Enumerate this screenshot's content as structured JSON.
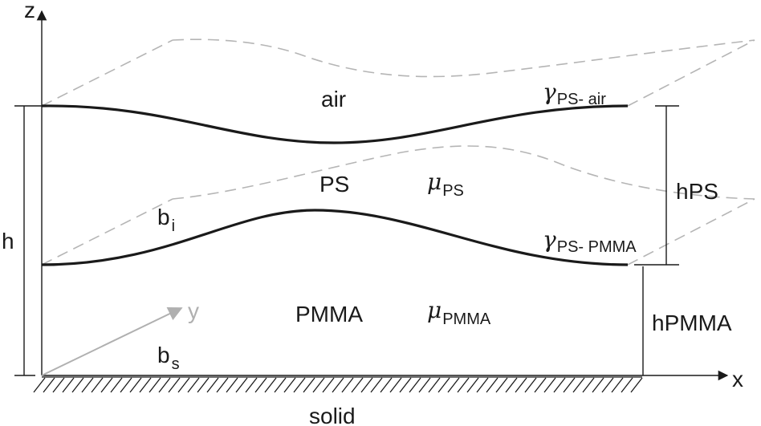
{
  "axes": {
    "z": "z",
    "x": "x",
    "y": "y"
  },
  "layers": {
    "air": "air",
    "ps": "PS",
    "pmma": "PMMA",
    "solid": "solid"
  },
  "dimensions": {
    "total": "h",
    "ps": "h",
    "ps_sub": "PS",
    "pmma": "h",
    "pmma_sub": "PMMA"
  },
  "interfaces": {
    "bi": "b",
    "bi_sub": "i",
    "bs": "b",
    "bs_sub": "s",
    "gamma_ps_air": "γ",
    "gamma_ps_air_sub": "PS- air",
    "gamma_ps_pmma": "γ",
    "gamma_ps_pmma_sub": "PS- PMMA"
  },
  "viscosity": {
    "mu_ps": "μ",
    "mu_ps_sub": "PS",
    "mu_pmma": "μ",
    "mu_pmma_sub": "PMMA"
  },
  "colors": {
    "ink": "#1a1a1a",
    "dashed": "#b5b5b5",
    "y_axis": "#b0b0b0"
  }
}
